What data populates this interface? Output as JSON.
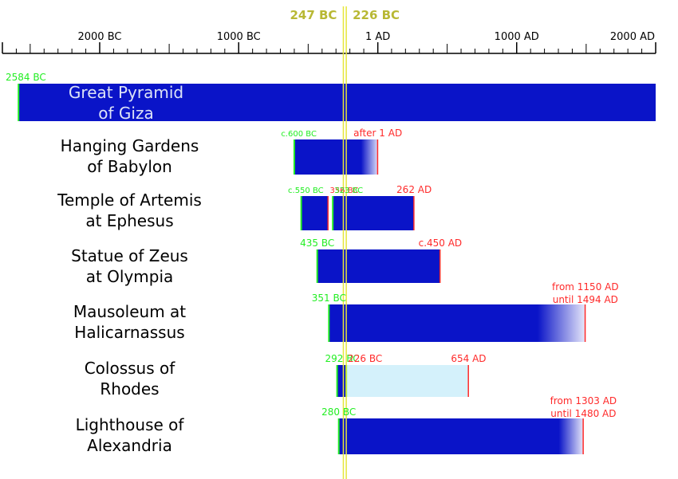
{
  "colors": {
    "bar": "#0a14c8",
    "destroyed_remains": "#d4f1fb",
    "start_mark": "#22ee22",
    "end_mark": "#ff2a2a",
    "reference_line": "#e6e63a",
    "reference_text": "#b8b834",
    "label_inside": "#dde3f7"
  },
  "chart_data": {
    "type": "timeline",
    "title": "",
    "axis": {
      "min": -2700,
      "max": 2000,
      "major_ticks": [
        -2000,
        -1000,
        1,
        1000,
        2000
      ],
      "tick_labels": [
        "2000 BC",
        "1000 BC",
        "1 AD",
        "1000 AD",
        "2000 AD"
      ],
      "minor_tick_step": 100
    },
    "reference_lines": [
      {
        "year": -247,
        "label": "247 BC"
      },
      {
        "year": -226,
        "label": "226 BC"
      }
    ],
    "wonders": [
      {
        "name": "Great Pyramid\nof Giza",
        "label_inside": true,
        "segments": [
          {
            "start": -2584,
            "end": 2000,
            "style": "solid"
          }
        ],
        "annotations": [
          {
            "text": "2584 BC",
            "at": -2584,
            "kind": "start",
            "align": "right"
          }
        ]
      },
      {
        "name": "Hanging Gardens\nof Babylon",
        "segments": [
          {
            "start": -600,
            "end": 1,
            "style": "fade"
          }
        ],
        "annotations": [
          {
            "text": "c.600 BC",
            "at": -600,
            "kind": "start",
            "align": "right",
            "small": true
          },
          {
            "text": "after 1 AD",
            "at": 1,
            "kind": "end",
            "align": "center"
          }
        ]
      },
      {
        "name": "Temple of Artemis\nat Ephesus",
        "segments": [
          {
            "start": -550,
            "end": -356,
            "style": "solid"
          },
          {
            "start": -323,
            "end": 262,
            "style": "solid"
          }
        ],
        "annotations": [
          {
            "text": "c.550 BC",
            "at": -550,
            "kind": "start",
            "align": "right",
            "small": true
          },
          {
            "text": "356 BC",
            "at": -356,
            "kind": "end",
            "align": "left",
            "small": true
          },
          {
            "text": "323 BC",
            "at": -323,
            "kind": "start",
            "align": "left",
            "small": true
          },
          {
            "text": "262 AD",
            "at": 262,
            "kind": "end",
            "align": "center"
          }
        ]
      },
      {
        "name": "Statue of Zeus\nat Olympia",
        "segments": [
          {
            "start": -435,
            "end": 450,
            "style": "solid"
          }
        ],
        "annotations": [
          {
            "text": "435 BC",
            "at": -435,
            "kind": "start",
            "align": "center"
          },
          {
            "text": "c.450 AD",
            "at": 450,
            "kind": "end",
            "align": "center"
          }
        ]
      },
      {
        "name": "Mausoleum at\nHalicarnassus",
        "segments": [
          {
            "start": -351,
            "end": 1494,
            "fade_from": 1150,
            "style": "partial-fade"
          }
        ],
        "annotations": [
          {
            "text": "351 BC",
            "at": -351,
            "kind": "start",
            "align": "center"
          },
          {
            "text": "from 1150 AD",
            "at": 1494,
            "kind": "end",
            "align": "center"
          },
          {
            "text": "until 1494 AD",
            "at": 1494,
            "kind": "end",
            "align": "center",
            "line": 2
          }
        ]
      },
      {
        "name": "Colossus of\nRhodes",
        "segments": [
          {
            "start": -292,
            "end": -226,
            "style": "solid"
          },
          {
            "start": -226,
            "end": 654,
            "style": "remains"
          }
        ],
        "annotations": [
          {
            "text": "292 BC",
            "at": -292,
            "kind": "start",
            "align": "right"
          },
          {
            "text": "226 BC",
            "at": -226,
            "kind": "end",
            "align": "left"
          },
          {
            "text": "654 AD",
            "at": 654,
            "kind": "end",
            "align": "center"
          }
        ]
      },
      {
        "name": "Lighthouse of\nAlexandria",
        "segments": [
          {
            "start": -280,
            "end": 1480,
            "fade_from": 1303,
            "style": "partial-fade"
          }
        ],
        "annotations": [
          {
            "text": "280 BC",
            "at": -280,
            "kind": "start",
            "align": "center"
          },
          {
            "text": "from 1303 AD",
            "at": 1480,
            "kind": "end",
            "align": "center"
          },
          {
            "text": "until 1480 AD",
            "at": 1480,
            "kind": "end",
            "align": "center",
            "line": 2
          }
        ]
      }
    ]
  }
}
